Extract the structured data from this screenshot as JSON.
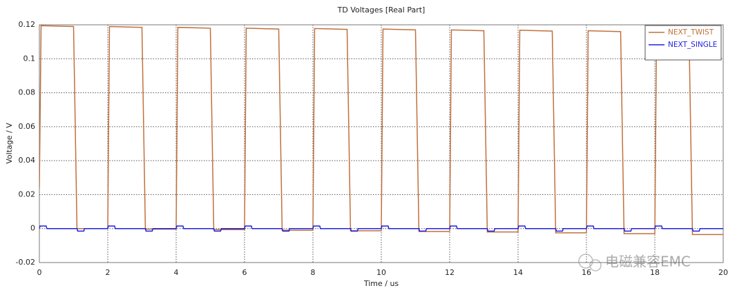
{
  "chart_data": {
    "type": "line",
    "title": "TD Voltages [Real Part]",
    "xlabel": "Time / us",
    "ylabel": "Voltage / V",
    "xlim": [
      0,
      20
    ],
    "xticks": [
      0,
      2,
      4,
      6,
      8,
      10,
      12,
      14,
      16,
      18,
      20
    ],
    "ylim": [
      -0.02,
      0.12
    ],
    "yticks": [
      -0.02,
      0,
      0.02,
      0.04,
      0.06,
      0.08,
      0.1,
      0.12
    ],
    "grid": true,
    "legend": "upper right",
    "watermark": "电磁兼容EMC",
    "series": [
      {
        "name": "NEXT_TWIST",
        "color": "#c0703a",
        "x": [
          0,
          0.05,
          1,
          1.1,
          2,
          2.05,
          3,
          3.1,
          4,
          4.05,
          5,
          5.1,
          6,
          6.05,
          7,
          7.1,
          8,
          8.05,
          9,
          9.1,
          10,
          10.05,
          11,
          11.1,
          12,
          12.05,
          13,
          13.1,
          14,
          14.05,
          15,
          15.1,
          16,
          16.05,
          17,
          17.1,
          18,
          18.05,
          19,
          19.1,
          20
        ],
        "values": [
          0.024,
          0.1195,
          0.119,
          0,
          0,
          0.119,
          0.1185,
          -0.0003,
          -0.0003,
          0.1185,
          0.118,
          -0.0006,
          -0.0006,
          0.118,
          0.1175,
          -0.001,
          -0.001,
          0.1178,
          0.1173,
          -0.0013,
          -0.0013,
          0.1175,
          0.117,
          -0.0017,
          -0.0017,
          0.117,
          0.1165,
          -0.002,
          -0.002,
          0.1168,
          0.1163,
          -0.0025,
          -0.0025,
          0.1165,
          0.116,
          -0.003,
          -0.003,
          0.116,
          0.1155,
          -0.0035,
          -0.0035
        ]
      },
      {
        "name": "NEXT_SINGLE",
        "color": "#1f1fe0",
        "x": [
          0,
          0.02,
          0.2,
          0.22,
          1.1,
          1.12,
          1.3,
          1.32,
          2,
          2.02,
          2.2,
          2.22,
          3.1,
          3.12,
          3.3,
          3.32,
          4,
          4.02,
          4.2,
          4.22,
          5.1,
          5.12,
          5.3,
          5.32,
          6,
          6.02,
          6.2,
          6.22,
          7.1,
          7.12,
          7.3,
          7.32,
          8,
          8.02,
          8.2,
          8.22,
          9.1,
          9.12,
          9.3,
          9.32,
          10,
          10.02,
          10.2,
          10.22,
          11.1,
          11.12,
          11.3,
          11.32,
          12,
          12.02,
          12.2,
          12.22,
          13.1,
          13.12,
          13.3,
          13.32,
          14,
          14.02,
          14.2,
          14.22,
          15.1,
          15.12,
          15.3,
          15.32,
          16,
          16.02,
          16.2,
          16.22,
          17.1,
          17.12,
          17.3,
          17.32,
          18,
          18.02,
          18.2,
          18.22,
          19.1,
          19.12,
          19.3,
          19.32,
          20
        ],
        "values": [
          0,
          0.0015,
          0.0015,
          0,
          0,
          -0.0015,
          -0.0015,
          0,
          0,
          0.0015,
          0.0015,
          0,
          0,
          -0.0015,
          -0.0015,
          0,
          0,
          0.0015,
          0.0015,
          0,
          0,
          -0.0015,
          -0.0015,
          0,
          0,
          0.0015,
          0.0015,
          0,
          0,
          -0.0015,
          -0.0015,
          0,
          0,
          0.0015,
          0.0015,
          0,
          0,
          -0.0015,
          -0.0015,
          0,
          0,
          0.0015,
          0.0015,
          0,
          0,
          -0.0015,
          -0.0015,
          0,
          0,
          0.0015,
          0.0015,
          0,
          0,
          -0.0015,
          -0.0015,
          0,
          0,
          0.0015,
          0.0015,
          0,
          0,
          -0.0015,
          -0.0015,
          0,
          0,
          0.0015,
          0.0015,
          0,
          0,
          -0.0015,
          -0.0015,
          0,
          0,
          0.0015,
          0.0015,
          0,
          0,
          -0.0015,
          -0.0015,
          0,
          0
        ]
      }
    ]
  }
}
